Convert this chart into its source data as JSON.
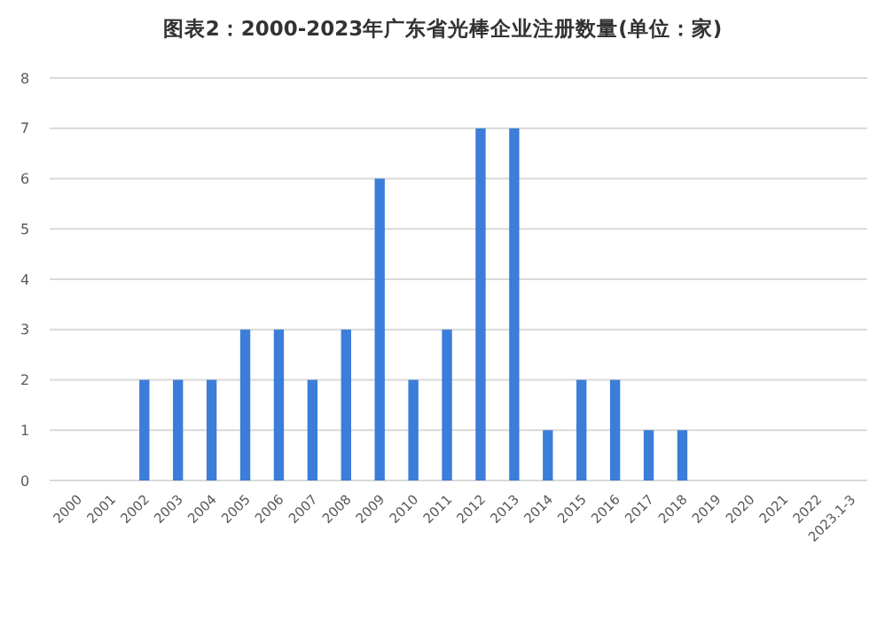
{
  "chart_data": {
    "type": "bar",
    "title": "图表2：2000-2023年广东省光棒企业注册数量(单位：家)",
    "categories": [
      "2000",
      "2001",
      "2002",
      "2003",
      "2004",
      "2005",
      "2006",
      "2007",
      "2008",
      "2009",
      "2010",
      "2011",
      "2012",
      "2013",
      "2014",
      "2015",
      "2016",
      "2017",
      "2018",
      "2019",
      "2020",
      "2021",
      "2022",
      "2023.1-3"
    ],
    "values": [
      0,
      0,
      2,
      2,
      2,
      3,
      3,
      2,
      3,
      6,
      2,
      3,
      7,
      7,
      1,
      2,
      2,
      1,
      1,
      0,
      0,
      0,
      0,
      0
    ],
    "color": "#3b7dd8",
    "ylim": [
      0,
      8
    ],
    "yticks": [
      0,
      1,
      2,
      3,
      4,
      5,
      6,
      7,
      8
    ],
    "grid": "y"
  }
}
